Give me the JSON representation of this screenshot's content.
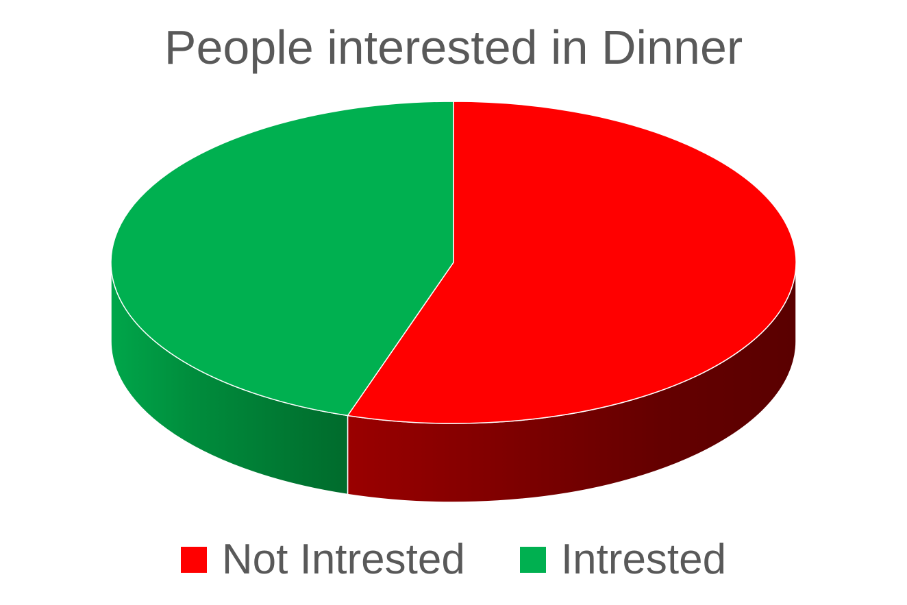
{
  "chart_data": {
    "type": "pie",
    "style": "3d",
    "title": "People interested in Dinner",
    "legend_position": "bottom",
    "slices": [
      {
        "label": "Not Intrested",
        "value": 55,
        "color": "#FF0000"
      },
      {
        "label": "Intrested",
        "value": 45,
        "color": "#00B050"
      }
    ]
  }
}
